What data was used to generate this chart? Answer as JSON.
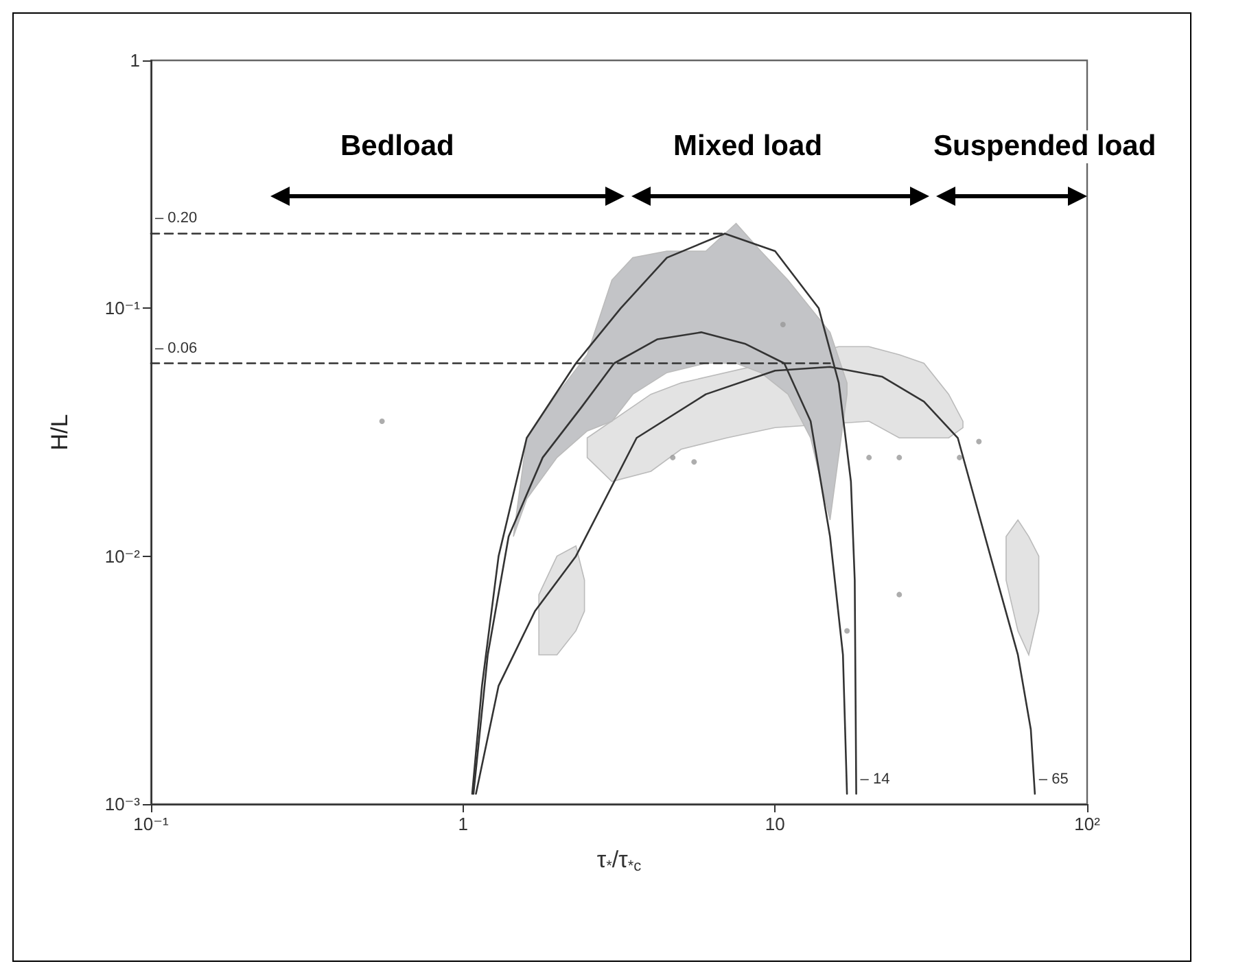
{
  "chart_data": {
    "type": "line",
    "xlabel": "τ$_{*}$/τ$_{*c}$",
    "ylabel": "H/L",
    "log": "xy",
    "xlim": [
      0.1,
      100
    ],
    "ylim": [
      0.001,
      1
    ],
    "xticks": [
      {
        "value": 0.1,
        "label": "10⁻¹"
      },
      1,
      10,
      {
        "value": 100,
        "label": "10²"
      }
    ],
    "yticks": [
      {
        "value": 0.001,
        "label": "10⁻³"
      },
      {
        "value": 0.01,
        "label": "10⁻²"
      },
      {
        "value": 0.1,
        "label": "10⁻¹"
      },
      1
    ],
    "series": [
      {
        "type": "area",
        "color": "#e3e3e3",
        "x": [
          2.5,
          4,
          5,
          16,
          20,
          25,
          30,
          36,
          40,
          40,
          36,
          30,
          25,
          20,
          16,
          13,
          10,
          7,
          5,
          4,
          3,
          2.5
        ],
        "values": [
          0.03,
          0.045,
          0.05,
          0.07,
          0.07,
          0.065,
          0.06,
          0.045,
          0.035,
          0.033,
          0.03,
          0.03,
          0.03,
          0.035,
          null,
          null,
          0.033,
          0.03,
          0.027,
          0.022,
          0.02,
          0.025
        ]
      },
      {
        "type": "area",
        "color": "#e3e3e3",
        "x": [
          1.75,
          2,
          2.3,
          2.45,
          2.45,
          2.3,
          2,
          1.75
        ],
        "values": [
          0.007,
          0.01,
          0.011,
          0.008,
          0.006,
          0.005,
          0.004,
          0.004
        ]
      },
      {
        "type": "area",
        "color": "#e3e3e3",
        "x": [
          55,
          60,
          65,
          70,
          70,
          65,
          60,
          55
        ],
        "values": [
          0.012,
          0.014,
          0.012,
          0.01,
          0.006,
          0.004,
          0.005,
          0.008
        ]
      },
      {
        "type": "area",
        "color": "#c3c4c7",
        "x": [
          1.45,
          1.6,
          2,
          2.5,
          3,
          3.5,
          4.5,
          6,
          7.5,
          9,
          11,
          13,
          15,
          17,
          17,
          15,
          13,
          11,
          9,
          7.5,
          6,
          4.5,
          3.5,
          3,
          2.5,
          2,
          1.6
        ],
        "values": [
          0.012,
          0.03,
          0.045,
          0.065,
          0.13,
          0.16,
          0.17,
          0.17,
          0.22,
          0.17,
          0.13,
          0.1,
          0.08,
          0.05,
          0.045,
          0.014,
          0.03,
          0.045,
          0.055,
          0.06,
          0.06,
          0.055,
          0.045,
          0.035,
          0.032,
          0.025,
          0.017
        ]
      },
      {
        "type": "scatter",
        "marker": "circle",
        "color": "#999999",
        "x": [
          0.55,
          10.6,
          4.7,
          5.5,
          17,
          20,
          25,
          39,
          45,
          25
        ],
        "values": [
          0.035,
          0.086,
          0.025,
          0.024,
          0.005,
          0.025,
          0.025,
          0.025,
          0.029,
          0.007
        ]
      },
      {
        "color": "#333333",
        "line_style": "dashed",
        "x": [
          0.1,
          6.9
        ],
        "values": [
          0.2,
          0.2
        ]
      },
      {
        "color": "#333333",
        "line_style": "dashed",
        "x": [
          0.1,
          15
        ],
        "values": [
          0.06,
          0.06
        ]
      },
      {
        "color": "#333333",
        "x": [
          1.07,
          1.15,
          1.3,
          1.6,
          2.3,
          3.2,
          4.5,
          6.9,
          10,
          13.8,
          16,
          17.5,
          18,
          18.2
        ],
        "values": [
          0.0011,
          0.003,
          0.01,
          0.03,
          0.06,
          0.1,
          0.16,
          0.2,
          0.17,
          0.1,
          0.05,
          0.02,
          0.008,
          0.0011
        ]
      },
      {
        "color": "#333333",
        "x": [
          1.08,
          1.2,
          1.4,
          1.8,
          2.4,
          3.05,
          4.2,
          5.8,
          8,
          10.7,
          13,
          15,
          16.5,
          17
        ],
        "values": [
          0.0011,
          0.004,
          0.012,
          0.025,
          0.04,
          0.06,
          0.075,
          0.08,
          0.072,
          0.06,
          0.035,
          0.012,
          0.004,
          0.0011
        ]
      },
      {
        "color": "#333333",
        "x": [
          1.1,
          1.3,
          1.7,
          2.3,
          3.6,
          6,
          10,
          15,
          22,
          30,
          38.5,
          49,
          60,
          66,
          68
        ],
        "values": [
          0.0011,
          0.003,
          0.006,
          0.01,
          0.03,
          0.045,
          0.056,
          0.058,
          0.053,
          0.042,
          0.03,
          0.01,
          0.004,
          0.002,
          0.0011
        ]
      }
    ],
    "marker": "none",
    "annotations": [
      "Bedload",
      "Mixed load",
      "Suspended load",
      {
        "text": "– 0.20",
        "x": 0.1,
        "y": 0.2
      },
      {
        "text": "– 0.06",
        "x": 0.1,
        "y": 0.06
      },
      {
        "text": "– 14",
        "x": 18.2,
        "y": 0.0011
      },
      {
        "text": "– 65",
        "x": 68,
        "y": 0.0011
      }
    ]
  }
}
